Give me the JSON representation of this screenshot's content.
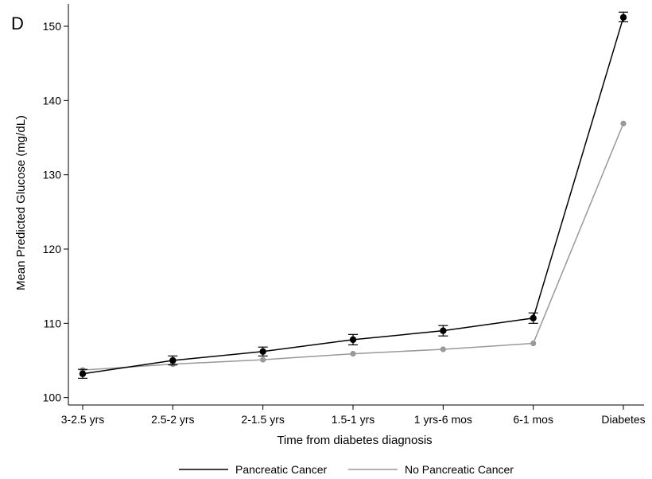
{
  "panel_label": "D",
  "chart_data": {
    "type": "line",
    "title": "",
    "xlabel": "Time from diabetes diagnosis",
    "ylabel": "Mean Predicted Glucose (mg/dL)",
    "categories": [
      "3-2.5 yrs",
      "2.5-2 yrs",
      "2-1.5 yrs",
      "1.5-1 yrs",
      "1 yrs-6 mos",
      "6-1 mos",
      "Diabetes"
    ],
    "ylim": [
      99,
      153
    ],
    "yticks": [
      100,
      110,
      120,
      130,
      140,
      150
    ],
    "grid": false,
    "legend_position": "bottom",
    "series": [
      {
        "name": "Pancreatic Cancer",
        "color": "#000000",
        "values": [
          103.2,
          105.0,
          106.2,
          107.8,
          109.0,
          110.7,
          151.2
        ],
        "err_low": [
          102.6,
          104.4,
          105.6,
          107.1,
          108.3,
          110.0,
          150.6
        ],
        "err_high": [
          103.8,
          105.6,
          106.8,
          108.5,
          109.7,
          111.4,
          151.9
        ]
      },
      {
        "name": "No Pancreatic Cancer",
        "color": "#999999",
        "values": [
          103.7,
          104.5,
          105.1,
          105.9,
          106.5,
          107.3,
          136.9
        ]
      }
    ]
  }
}
